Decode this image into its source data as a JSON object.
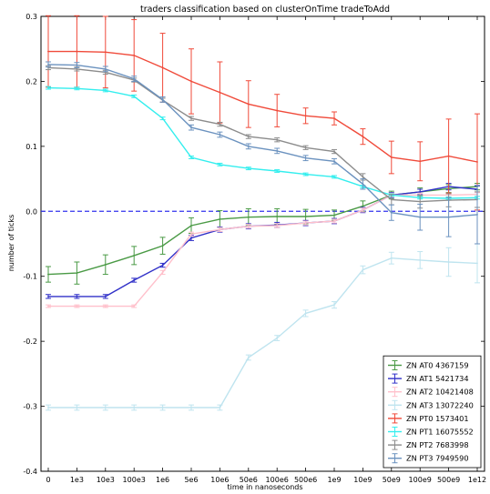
{
  "chart_data": {
    "type": "line",
    "title": "traders classification based on clusterOnTime tradeToAdd",
    "xlabel": "time in nanoseconds",
    "ylabel": "number of ticks",
    "categories": [
      "0",
      "1e3",
      "10e3",
      "100e3",
      "1e6",
      "5e6",
      "10e6",
      "50e6",
      "100e6",
      "500e6",
      "1e9",
      "10e9",
      "50e9",
      "100e9",
      "500e9",
      "1e12"
    ],
    "ylim": [
      -0.4,
      0.3
    ],
    "yticks": [
      "0.3",
      "0.2",
      "0.1",
      "0.0",
      "-0.1",
      "-0.2",
      "-0.3",
      "-0.4"
    ],
    "reference_line": {
      "y": 0.0,
      "style": "dashed",
      "color": "#3333ee"
    },
    "legend_position": "bottom-right",
    "series": [
      {
        "name": "ZN AT0 4367159",
        "color": "#4a9a45",
        "values": [
          -0.097,
          -0.095,
          -0.082,
          -0.068,
          -0.053,
          -0.022,
          -0.012,
          -0.009,
          -0.008,
          -0.008,
          -0.006,
          0.008,
          0.025,
          0.03,
          0.035,
          0.038
        ],
        "errors": [
          0.012,
          0.017,
          0.015,
          0.014,
          0.013,
          0.012,
          0.013,
          0.013,
          0.012,
          0.011,
          0.008,
          0.008,
          0.006,
          0.006,
          0.006,
          0.005
        ]
      },
      {
        "name": "ZN AT1 5421734",
        "color": "#3030c8",
        "values": [
          -0.131,
          -0.131,
          -0.131,
          -0.106,
          -0.083,
          -0.041,
          -0.028,
          -0.023,
          -0.021,
          -0.018,
          -0.015,
          0.002,
          0.025,
          0.03,
          0.038,
          0.034
        ],
        "errors": [
          0.003,
          0.003,
          0.003,
          0.003,
          0.003,
          0.004,
          0.004,
          0.004,
          0.004,
          0.004,
          0.004,
          0.004,
          0.004,
          0.004,
          0.005,
          0.005
        ]
      },
      {
        "name": "ZN AT2 10421408",
        "color": "#ffc0cb",
        "values": [
          -0.146,
          -0.146,
          -0.146,
          -0.146,
          -0.094,
          -0.035,
          -0.028,
          -0.023,
          -0.022,
          -0.018,
          -0.015,
          0.002,
          0.025,
          0.025,
          0.025,
          0.026
        ],
        "errors": [
          0.002,
          0.002,
          0.002,
          0.002,
          0.003,
          0.003,
          0.003,
          0.003,
          0.003,
          0.003,
          0.003,
          0.003,
          0.003,
          0.003,
          0.003,
          0.003
        ]
      },
      {
        "name": "ZN AT3 13072240",
        "color": "#bfe4ef",
        "values": [
          -0.302,
          -0.302,
          -0.302,
          -0.302,
          -0.302,
          -0.302,
          -0.302,
          -0.225,
          -0.195,
          -0.157,
          -0.144,
          -0.09,
          -0.072,
          -0.075,
          -0.078,
          -0.08
        ],
        "errors": [
          0.004,
          0.004,
          0.004,
          0.004,
          0.004,
          0.004,
          0.004,
          0.004,
          0.004,
          0.005,
          0.005,
          0.006,
          0.009,
          0.013,
          0.022,
          0.03
        ]
      },
      {
        "name": "ZN PT0 1573401",
        "color": "#f04a3a",
        "values": [
          0.246,
          0.246,
          0.245,
          0.24,
          0.221,
          0.2,
          0.183,
          0.165,
          0.155,
          0.147,
          0.143,
          0.115,
          0.083,
          0.077,
          0.085,
          0.076
        ],
        "errors": [
          0.055,
          0.055,
          0.055,
          0.055,
          0.053,
          0.05,
          0.047,
          0.036,
          0.025,
          0.012,
          0.01,
          0.012,
          0.025,
          0.03,
          0.057,
          0.074
        ]
      },
      {
        "name": "ZN PT1 16075552",
        "color": "#33eeee",
        "values": [
          0.19,
          0.189,
          0.186,
          0.177,
          0.143,
          0.083,
          0.072,
          0.066,
          0.062,
          0.057,
          0.053,
          0.038,
          0.025,
          0.021,
          0.02,
          0.021
        ],
        "errors": [
          0.002,
          0.002,
          0.002,
          0.002,
          0.002,
          0.002,
          0.002,
          0.002,
          0.002,
          0.002,
          0.002,
          0.002,
          0.002,
          0.002,
          0.002,
          0.002
        ]
      },
      {
        "name": "ZN PT2 7683998",
        "color": "#8c8c8c",
        "values": [
          0.221,
          0.219,
          0.214,
          0.202,
          0.171,
          0.143,
          0.134,
          0.115,
          0.11,
          0.098,
          0.092,
          0.053,
          0.018,
          0.015,
          0.017,
          0.018
        ],
        "errors": [
          0.003,
          0.003,
          0.003,
          0.003,
          0.003,
          0.003,
          0.003,
          0.003,
          0.003,
          0.003,
          0.003,
          0.005,
          0.008,
          0.01,
          0.01,
          0.012
        ]
      },
      {
        "name": "ZN PT3 7949590",
        "color": "#6b92bf",
        "values": [
          0.226,
          0.225,
          0.219,
          0.204,
          0.172,
          0.129,
          0.118,
          0.1,
          0.093,
          0.082,
          0.077,
          0.042,
          -0.002,
          -0.009,
          -0.009,
          -0.005
        ],
        "errors": [
          0.004,
          0.004,
          0.004,
          0.004,
          0.004,
          0.004,
          0.004,
          0.004,
          0.004,
          0.004,
          0.004,
          0.008,
          0.012,
          0.02,
          0.03,
          0.045
        ]
      }
    ]
  }
}
